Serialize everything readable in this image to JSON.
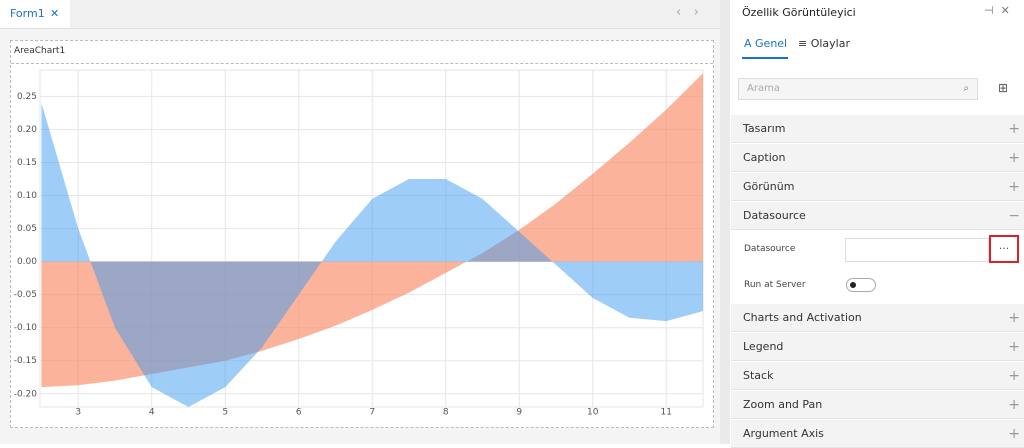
{
  "tab": {
    "title": "Form1"
  },
  "component": {
    "label": "AreaChart1"
  },
  "chart_data": {
    "type": "area",
    "x": [
      2.5,
      3,
      3.5,
      4,
      4.5,
      5,
      5.5,
      6,
      6.5,
      7,
      7.5,
      8,
      8.5,
      9,
      9.5,
      10,
      10.5,
      11,
      11.5
    ],
    "series": [
      {
        "color": "#f98a66",
        "values": [
          -0.19,
          -0.187,
          -0.18,
          -0.17,
          -0.16,
          -0.15,
          -0.135,
          -0.117,
          -0.097,
          -0.073,
          -0.047,
          -0.017,
          0.013,
          0.048,
          0.088,
          0.133,
          0.18,
          0.23,
          0.285
        ]
      },
      {
        "color": "#3d9cf0",
        "values": [
          0.24,
          0.05,
          -0.1,
          -0.19,
          -0.22,
          -0.19,
          -0.13,
          -0.05,
          0.03,
          0.095,
          0.125,
          0.125,
          0.095,
          0.045,
          -0.005,
          -0.055,
          -0.085,
          -0.09,
          -0.075
        ]
      }
    ],
    "xlim": [
      2.48,
      11.5
    ],
    "xticks": [
      3,
      4,
      5,
      6,
      7,
      8,
      9,
      10,
      11
    ],
    "ylim": [
      -0.22,
      0.29
    ],
    "yticks": [
      0.25,
      {
        "value": 0.2,
        "label": "0.20"
      },
      0.15,
      {
        "value": 0.1,
        "label": "0.10"
      },
      0.05,
      {
        "value": 0,
        "label": "0.00"
      },
      -0.05,
      {
        "value": -0.1,
        "label": "-0.10"
      },
      -0.15,
      {
        "value": -0.2,
        "label": "-0.20"
      }
    ],
    "grid": true
  },
  "panel": {
    "title": "Özellik Görüntüleyici",
    "tabs": [
      "Genel",
      "Olaylar"
    ],
    "search_placeholder": "Arama",
    "sections": [
      "Tasarım",
      "Caption",
      "Görünüm",
      "Datasource",
      "Charts and Activation",
      "Legend",
      "Stack",
      "Zoom and Pan",
      "Argument Axis"
    ],
    "fields": [
      "Datasource",
      "Run at Server"
    ],
    "button": "···"
  }
}
